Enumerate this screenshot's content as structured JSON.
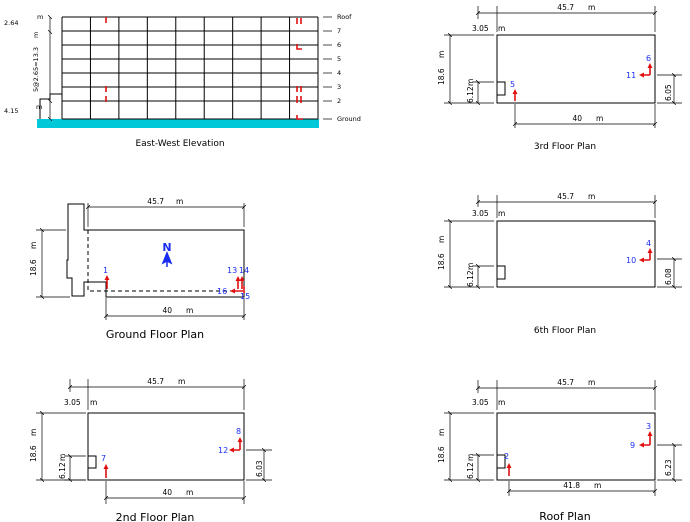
{
  "elevation": {
    "caption": "East-West Elevation",
    "dim_top": "2.64",
    "dim_mid": "5@2.65=13.3",
    "dim_mid_unit": "m",
    "dim_bottom": "4.15",
    "dim_unit": "m",
    "levels": [
      "Roof",
      "7",
      "6",
      "5",
      "4",
      "3",
      "2",
      "Ground"
    ]
  },
  "plans": {
    "ground": {
      "caption": "Ground Floor Plan",
      "width": "45.7",
      "depth": "18.6",
      "span": "40",
      "unit": "m",
      "north_label": "N",
      "sensors": [
        "1",
        "13",
        "14",
        "15",
        "16"
      ]
    },
    "second": {
      "caption": "2nd Floor Plan",
      "width": "45.7",
      "depth": "18.6",
      "notch_w": "3.05",
      "notch_h": "6.12",
      "span": "40",
      "side_off": "6.03",
      "unit": "m",
      "sensors": [
        "7",
        "8",
        "12"
      ]
    },
    "third": {
      "caption": "3rd Floor Plan",
      "width": "45.7",
      "depth": "18.6",
      "notch_w": "3.05",
      "notch_h": "6.12",
      "span": "40",
      "side_off": "6.05",
      "unit": "m",
      "sensors": [
        "5",
        "6",
        "11"
      ]
    },
    "sixth": {
      "caption": "6th Floor Plan",
      "width": "45.7",
      "depth": "18.6",
      "notch_w": "3.05",
      "notch_h": "6.12",
      "side_off": "6.08",
      "unit": "m",
      "sensors": [
        "4",
        "10"
      ]
    },
    "roof": {
      "caption": "Roof Plan",
      "width": "45.7",
      "depth": "18.6",
      "notch_w": "3.05",
      "notch_h": "6.12",
      "span": "41.8",
      "side_off": "6.23",
      "unit": "m",
      "sensors": [
        "2",
        "3",
        "9"
      ]
    }
  },
  "colors": {
    "lines": "#000000",
    "sensor_arrows": "#e01010",
    "sensor_labels": "#1a2cf0",
    "ground_strip": "#00c8d8",
    "north_arrow": "#1a2cf0"
  }
}
